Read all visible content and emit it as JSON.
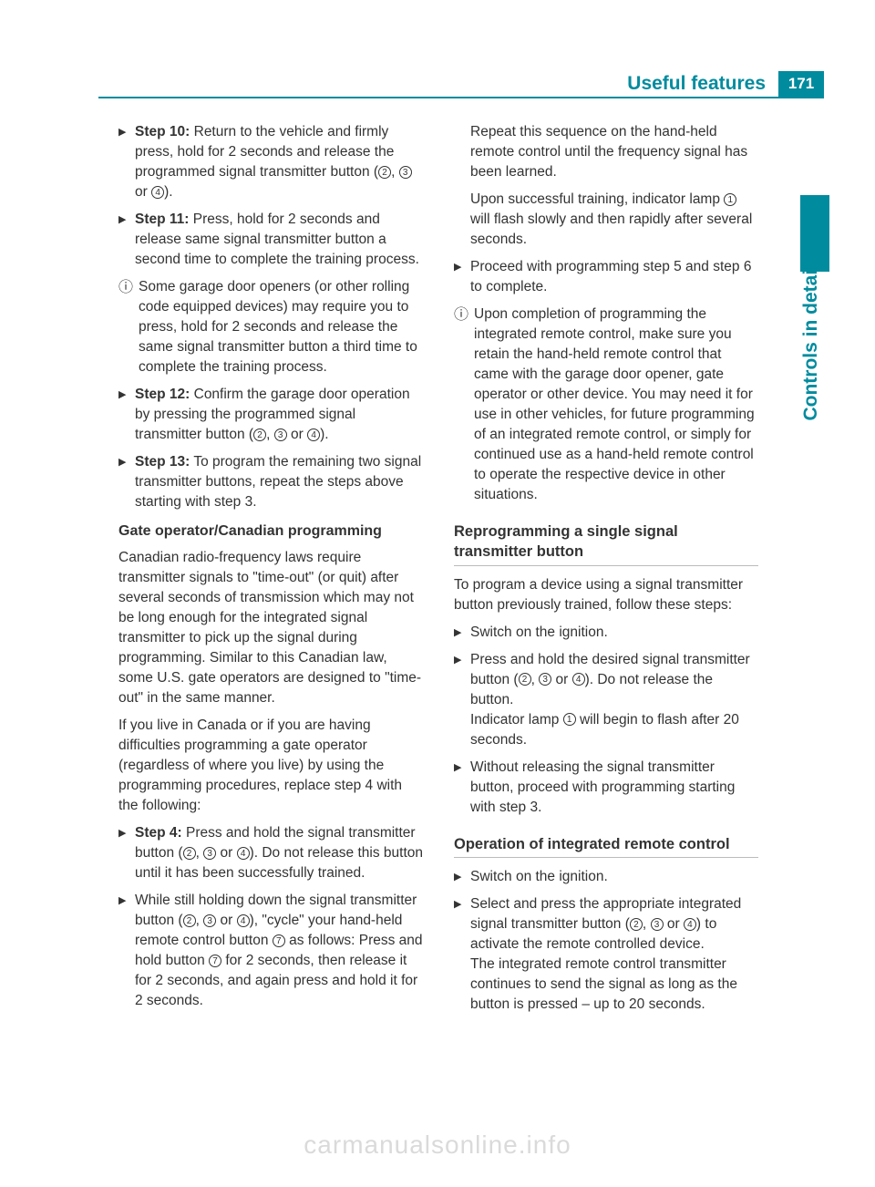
{
  "header": {
    "title": "Useful features",
    "page": "171"
  },
  "side": {
    "label": "Controls in detail"
  },
  "colors": {
    "accent": "#008b9e",
    "text": "#333333",
    "divider": "#bbbbbb",
    "bg": "#ffffff"
  },
  "left": {
    "step10": {
      "label": "Step 10:",
      "text": " Return to the vehicle and firmly press, hold for 2 seconds and release the programmed signal transmitter button (",
      "tail": " or ",
      "end": ")."
    },
    "step11": {
      "label": "Step 11:",
      "text": " Press, hold for 2 seconds and release same signal transmitter button a second time to complete the training process."
    },
    "info1": "Some garage door openers (or other rolling code equipped devices) may require you to press, hold for 2 seconds and release the same signal transmitter button a third time to complete the training process.",
    "step12": {
      "label": "Step 12:",
      "text": " Confirm the garage door operation by pressing the programmed signal transmitter button (",
      "end": ")."
    },
    "step13": {
      "label": "Step 13:",
      "text": " To program the remaining two signal transmitter buttons, repeat the steps above starting with step 3."
    },
    "gate_head": "Gate operator/Canadian programming",
    "gate_p1": "Canadian radio-frequency laws require transmitter signals to \"time-out\" (or quit) after several seconds of transmission which may not be long enough for the integrated signal transmitter to pick up the signal during programming. Similar to this Canadian law, some U.S. gate operators are designed to \"time-out\" in the same manner.",
    "gate_p2": "If you live in Canada or if you are having difficulties programming a gate operator (regardless of where you live) by using the programming procedures, replace step 4 with the following:",
    "step4": {
      "label": "Step 4:",
      "text": " Press and hold the signal transmitter button (",
      "tail": "). Do not release this button until it has been successfully trained."
    },
    "while1": "While still holding down the signal transmitter button (",
    "while2": "), \"cycle\" your hand-held remote control button ",
    "while3": " as follows: Press and hold button ",
    "while4": " for 2 seconds, then release it for 2 seconds, and again press and hold it for 2 seconds."
  },
  "right": {
    "repeat1": "Repeat this sequence on the hand-held remote control until the frequency signal has been learned.",
    "repeat2a": "Upon successful training, indicator lamp ",
    "repeat2b": " will flash slowly and then rapidly after several seconds.",
    "proceed": "Proceed with programming step 5 and step 6 to complete.",
    "info2": "Upon completion of programming the integrated remote control, make sure you retain the hand-held remote control that came with the garage door opener, gate operator or other device. You may need it for use in other vehicles, for future programming of an integrated remote control, or simply for continued use as a hand-held remote control to operate the respective device in other situations.",
    "reprog_head": "Reprogramming a single signal transmitter button",
    "reprog_intro": "To program a device using a signal transmitter button previously trained, follow these steps:",
    "r1": "Switch on the ignition.",
    "r2a": "Press and hold the desired signal transmitter button (",
    "r2b": "). Do not release the button.",
    "r2c": "Indicator lamp ",
    "r2d": " will begin to flash after 20 seconds.",
    "r3": "Without releasing the signal transmitter button, proceed with programming starting with step 3.",
    "op_head": "Operation of integrated remote control",
    "o1": "Switch on the ignition.",
    "o2a": "Select and press the appropriate integrated signal transmitter button (",
    "o2b": ") to activate the remote controlled device.",
    "o2c": "The integrated remote control transmitter continues to send the signal as long as the button is pressed – up to 20 seconds."
  },
  "refs": {
    "n1": "1",
    "n2": "2",
    "n3": "3",
    "n4": "4",
    "n7": "7"
  },
  "watermark": "carmanualsonline.info"
}
